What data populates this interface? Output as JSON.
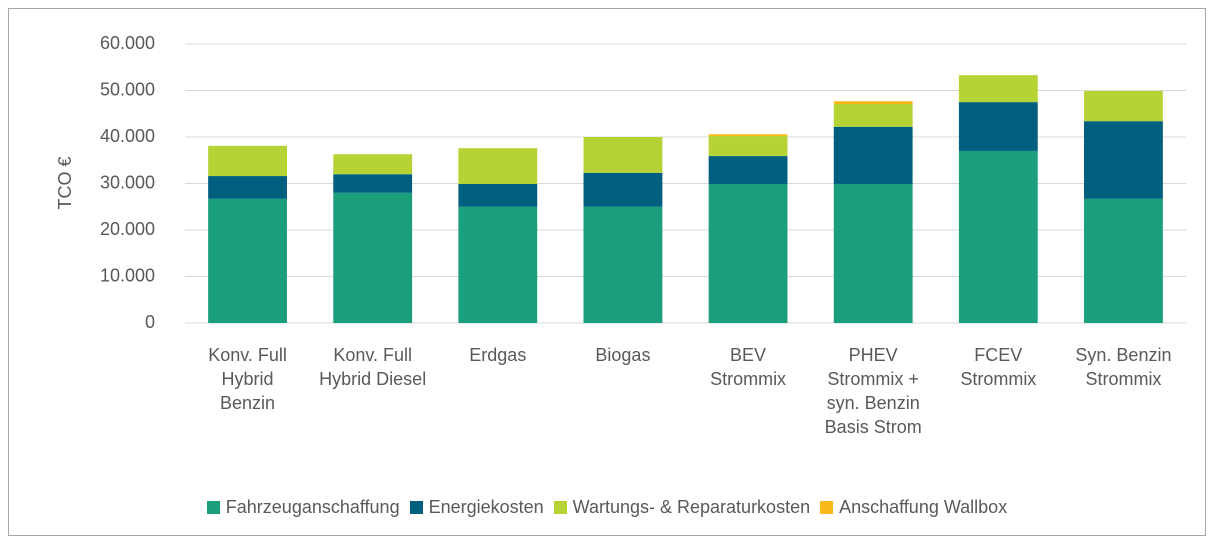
{
  "chart_data": {
    "type": "stacked_bar",
    "y_label": "TCO €",
    "categories": [
      "Konv. Full Hybrid Benzin",
      "Konv. Full Hybrid Diesel",
      "Erdgas",
      "Biogas",
      "BEV Strommix",
      "PHEV Strommix + syn. Benzin Basis Strom",
      "FCEV Strommix",
      "Syn. Benzin Strommix"
    ],
    "series": [
      {
        "name": "Fahrzeuganschaffung",
        "color": "#1a9e7c",
        "values": [
          26700,
          28000,
          25000,
          25000,
          29900,
          29900,
          37000,
          26700
        ]
      },
      {
        "name": "Energiekosten",
        "color": "#005f7f",
        "values": [
          4900,
          4000,
          4900,
          7300,
          6000,
          12300,
          10500,
          16700
        ]
      },
      {
        "name": "Wartungs- & Reparaturkosten",
        "color": "#b5d334",
        "values": [
          6500,
          4300,
          7700,
          7700,
          4300,
          4900,
          5800,
          6500
        ]
      },
      {
        "name": "Anschaffung Wallbox",
        "color": "#fbb81a",
        "values": [
          0,
          0,
          0,
          0,
          400,
          600,
          0,
          0
        ]
      }
    ],
    "ylim": [
      0,
      60000
    ],
    "yticks": [
      0,
      {
        "value": 10000,
        "label": "10.000"
      },
      {
        "value": 20000,
        "label": "20.000"
      },
      {
        "value": 30000,
        "label": "30.000"
      },
      {
        "value": 40000,
        "label": "40.000"
      },
      {
        "value": 50000,
        "label": "50.000"
      },
      {
        "value": 60000,
        "label": "60.000"
      }
    ],
    "grid": true,
    "legend": "bottom"
  }
}
